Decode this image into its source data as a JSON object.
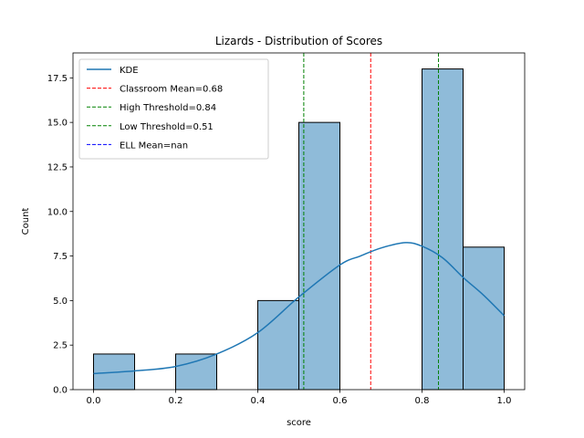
{
  "chart_data": {
    "type": "histogram",
    "title": "Lizards - Distribution of Scores",
    "xlabel": "score",
    "ylabel": "Count",
    "xlim": [
      -0.05,
      1.05
    ],
    "ylim": [
      0,
      18.9
    ],
    "xticks": [
      0.0,
      0.2,
      0.4,
      0.6,
      0.8,
      1.0
    ],
    "xtick_labels": [
      "0.0",
      "0.2",
      "0.4",
      "0.6",
      "0.8",
      "1.0"
    ],
    "yticks": [
      0,
      2.5,
      5,
      7.5,
      10,
      12.5,
      15,
      17.5
    ],
    "ytick_labels": [
      "0.0",
      "2.5",
      "5.0",
      "7.5",
      "10.0",
      "12.5",
      "15.0",
      "17.5"
    ],
    "grid": false,
    "bar_color": "#1f77b4",
    "bar_alpha": 0.5,
    "bins": [
      {
        "x0": 0.0,
        "x1": 0.1,
        "count": 2
      },
      {
        "x0": 0.1,
        "x1": 0.2,
        "count": 0
      },
      {
        "x0": 0.2,
        "x1": 0.3,
        "count": 2
      },
      {
        "x0": 0.3,
        "x1": 0.4,
        "count": 0
      },
      {
        "x0": 0.4,
        "x1": 0.5,
        "count": 5
      },
      {
        "x0": 0.5,
        "x1": 0.6,
        "count": 15
      },
      {
        "x0": 0.6,
        "x1": 0.7,
        "count": 0
      },
      {
        "x0": 0.7,
        "x1": 0.8,
        "count": 0
      },
      {
        "x0": 0.8,
        "x1": 0.9,
        "count": 18
      },
      {
        "x0": 0.9,
        "x1": 1.0,
        "count": 8
      }
    ],
    "kde": {
      "name": "KDE",
      "color": "#1f77b4",
      "x": [
        0.0,
        0.1,
        0.2,
        0.3,
        0.4,
        0.5,
        0.6,
        0.65,
        0.7,
        0.76,
        0.8,
        0.85,
        0.9,
        0.95,
        1.0
      ],
      "y": [
        0.9,
        1.05,
        1.3,
        2.0,
        3.2,
        5.2,
        7.0,
        7.5,
        7.95,
        8.25,
        8.05,
        7.4,
        6.3,
        5.3,
        4.15
      ]
    },
    "vlines": [
      {
        "name": "Classroom Mean=0.68",
        "x": 0.675,
        "color": "#ff0000"
      },
      {
        "name": "High Threshold=0.84",
        "x": 0.84,
        "color": "#008000"
      },
      {
        "name": "Low Threshold=0.51",
        "x": 0.512,
        "color": "#008000"
      },
      {
        "name": "ELL Mean=nan",
        "x": null,
        "color": "#0000ff"
      }
    ],
    "legend_position": "top-left"
  }
}
